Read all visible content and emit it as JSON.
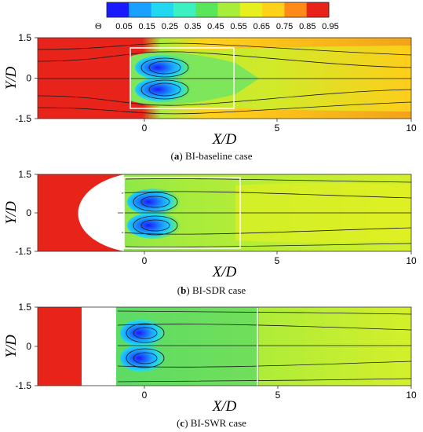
{
  "colorbar": {
    "symbol": "Θ",
    "ticks": [
      "0.05",
      "0.15",
      "0.25",
      "0.35",
      "0.45",
      "0.55",
      "0.65",
      "0.75",
      "0.85",
      "0.95"
    ],
    "colors": [
      "#1a1aff",
      "#1aa0ff",
      "#22d8f0",
      "#3df0c0",
      "#5ae65a",
      "#a8ec3c",
      "#e6f01e",
      "#ffd21a",
      "#ff8a1a",
      "#e8231a"
    ]
  },
  "panels": [
    {
      "letter": "a",
      "caption_rest": " BI-baseline case",
      "xlabel": "X/D",
      "ylabel": "Y/D",
      "xticks": [
        "0",
        "5",
        "10"
      ],
      "yticks": [
        "1.5",
        "0",
        "-1.5"
      ],
      "xlim": [
        -4,
        10
      ],
      "ylim": [
        -1.5,
        1.5
      ]
    },
    {
      "letter": "b",
      "caption_rest": " BI-SDR case",
      "xlabel": "X/D",
      "ylabel": "Y/D",
      "xticks": [
        "0",
        "5",
        "10"
      ],
      "yticks": [
        "1.5",
        "0",
        "-1.5"
      ],
      "xlim": [
        -4,
        10
      ],
      "ylim": [
        -1.5,
        1.5
      ]
    },
    {
      "letter": "c",
      "caption_rest": " BI-SWR case",
      "xlabel": "X/D",
      "ylabel": "Y/D",
      "xticks": [
        "5",
        "0",
        "10"
      ],
      "yticks": [
        "1.5",
        "0",
        "-1.5"
      ],
      "xlim": [
        -4,
        10
      ],
      "ylim": [
        -1.5,
        1.5
      ]
    }
  ]
}
